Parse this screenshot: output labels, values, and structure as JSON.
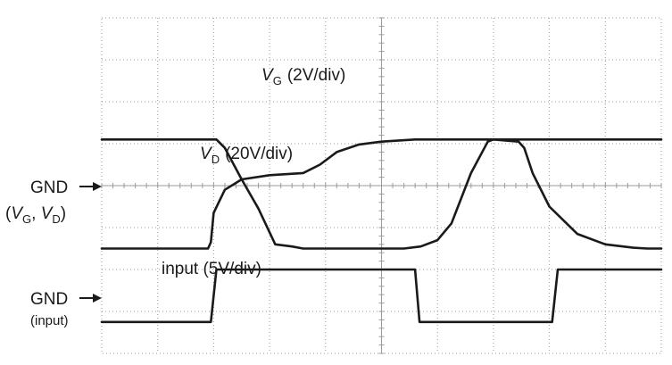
{
  "chart_data": {
    "type": "line",
    "title": "",
    "xlabel": "",
    "ylabel": "",
    "xlim": [
      0,
      10
    ],
    "ylim": [
      -4,
      4
    ],
    "grid": true,
    "grid_divisions": {
      "x": 10,
      "y": 8
    },
    "trace_color": "#1a1a1a",
    "grid_color": "#9a9a9a",
    "labels": {
      "vg_main": "V",
      "vg_sub": "G",
      "vg_scale": "(2V/div)",
      "vd_main": "V",
      "vd_sub": "D",
      "vd_scale": "(20V/div)",
      "input": "input (5V/div)",
      "gnd_top": "GND",
      "gnd_top_sub_open": "(",
      "gnd_top_vg_main": "V",
      "gnd_top_vg_sub": "G",
      "gnd_top_sep": ", ",
      "gnd_top_vd_main": "V",
      "gnd_top_vd_sub": "D",
      "gnd_top_sub_close": ")",
      "gnd_bottom": "GND",
      "gnd_bottom_sub": "(input)"
    },
    "series": [
      {
        "id": "vg",
        "x": [
          0,
          1.9,
          2.05,
          2.2,
          2.5,
          2.8,
          3.1,
          3.4,
          3.6,
          3.8,
          4.15,
          4.5,
          4.8,
          5.1,
          5.4,
          5.7,
          6.0,
          6.25,
          6.6,
          6.9,
          7.0,
          7.3,
          7.6,
          7.9,
          8.0,
          8.5,
          9.0,
          9.5,
          10
        ],
        "y": [
          1.1,
          1.1,
          1.1,
          0.9,
          0.15,
          -0.55,
          -1.4,
          -1.45,
          -1.5,
          -1.5,
          -1.5,
          -1.5,
          -1.5,
          -1.5,
          -1.5,
          -1.45,
          -1.3,
          -0.9,
          0.3,
          1.05,
          1.1,
          1.1,
          1.1,
          1.1,
          1.1,
          1.1,
          1.1,
          1.1,
          1.1
        ]
      },
      {
        "id": "vd",
        "x": [
          0,
          1.9,
          1.95,
          2.0,
          2.2,
          2.5,
          3.0,
          3.6,
          3.9,
          4.2,
          4.6,
          5.0,
          5.6,
          5.75,
          6.05,
          6.7,
          7.0,
          7.45,
          7.55,
          7.7,
          8.0,
          8.5,
          9.0,
          9.5,
          9.75,
          9.9,
          10
        ],
        "y": [
          -1.5,
          -1.5,
          -1.35,
          -0.65,
          -0.1,
          0.15,
          0.25,
          0.3,
          0.5,
          0.8,
          0.98,
          1.05,
          1.1,
          1.1,
          1.1,
          1.1,
          1.1,
          1.05,
          0.9,
          0.3,
          -0.5,
          -1.15,
          -1.4,
          -1.48,
          -1.5,
          -1.5,
          -1.5
        ]
      },
      {
        "id": "input",
        "x": [
          0,
          1.95,
          2.05,
          5.6,
          5.68,
          8.05,
          8.15,
          10
        ],
        "y": [
          -3.25,
          -3.25,
          -2.0,
          -2.0,
          -3.25,
          -3.25,
          -2.0,
          -2.0
        ]
      }
    ]
  }
}
